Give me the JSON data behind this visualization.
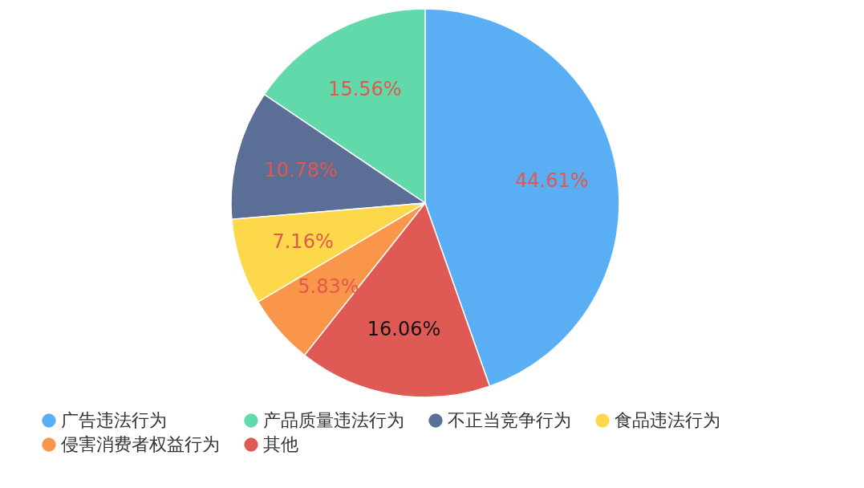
{
  "chart_data": {
    "type": "pie",
    "categories": [
      "广告违法行为",
      "产品质量违法行为",
      "不正当竞争行为",
      "食品违法行为",
      "侵害消费者权益行为",
      "其他"
    ],
    "values": [
      44.61,
      15.56,
      10.78,
      7.16,
      5.83,
      16.06
    ],
    "colors": [
      "#5aaef4",
      "#62d9ab",
      "#5a6e96",
      "#fcd84a",
      "#f9964a",
      "#e05a55"
    ],
    "value_labels": [
      "44.61%",
      "15.56%",
      "10.78%",
      "7.16%",
      "5.83%",
      "16.06%"
    ],
    "legend": "bottom"
  }
}
